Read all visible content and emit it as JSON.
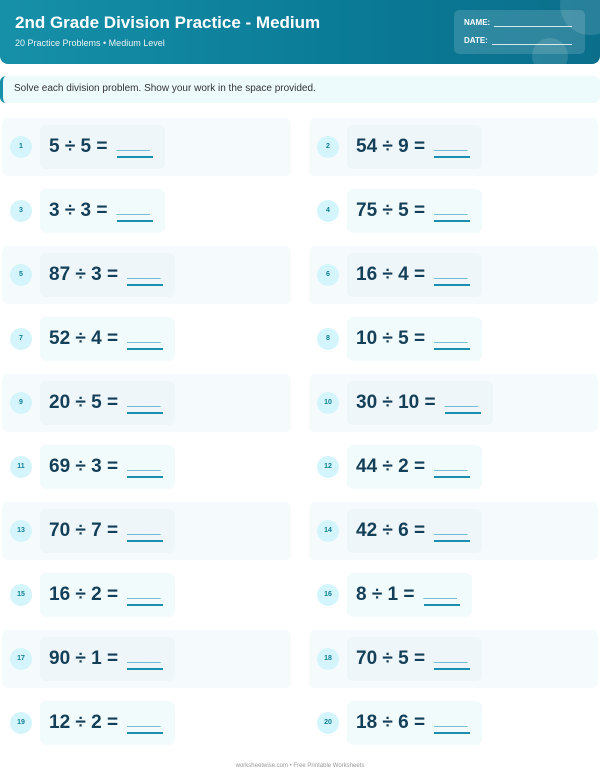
{
  "header": {
    "title": "2nd Grade Division Practice - Medium",
    "subtitle": "20 Practice Problems • Medium Level",
    "name_label": "NAME:",
    "date_label": "DATE:"
  },
  "instructions": "Solve each division problem. Show your work in the space provided.",
  "problems": [
    {
      "n": "1",
      "q": "5 ÷ 5 =",
      "a": "____"
    },
    {
      "n": "2",
      "q": "54 ÷ 9 =",
      "a": "____"
    },
    {
      "n": "3",
      "q": "3 ÷ 3 =",
      "a": "____"
    },
    {
      "n": "4",
      "q": "75 ÷ 5 =",
      "a": "____"
    },
    {
      "n": "5",
      "q": "87 ÷ 3 =",
      "a": "____"
    },
    {
      "n": "6",
      "q": "16 ÷ 4 =",
      "a": "____"
    },
    {
      "n": "7",
      "q": "52 ÷ 4 =",
      "a": "____"
    },
    {
      "n": "8",
      "q": "10 ÷ 5 =",
      "a": "____"
    },
    {
      "n": "9",
      "q": "20 ÷ 5 =",
      "a": "____"
    },
    {
      "n": "10",
      "q": "30 ÷ 10 =",
      "a": "____"
    },
    {
      "n": "11",
      "q": "69 ÷ 3 =",
      "a": "____"
    },
    {
      "n": "12",
      "q": "44 ÷ 2 =",
      "a": "____"
    },
    {
      "n": "13",
      "q": "70 ÷ 7 =",
      "a": "____"
    },
    {
      "n": "14",
      "q": "42 ÷ 6 =",
      "a": "____"
    },
    {
      "n": "15",
      "q": "16 ÷ 2 =",
      "a": "____"
    },
    {
      "n": "16",
      "q": "8 ÷ 1 =",
      "a": "____"
    },
    {
      "n": "17",
      "q": "90 ÷ 1 =",
      "a": "____"
    },
    {
      "n": "18",
      "q": "70 ÷ 5 =",
      "a": "____"
    },
    {
      "n": "19",
      "q": "12 ÷ 2 =",
      "a": "____"
    },
    {
      "n": "20",
      "q": "18 ÷ 6 =",
      "a": "____"
    }
  ],
  "footer": "worksheetwise.com • Free Printable Worksheets",
  "colors": {
    "accent": "#1690a8",
    "problem_text": "#143f58",
    "badge_bg": "#d3f5fb"
  }
}
